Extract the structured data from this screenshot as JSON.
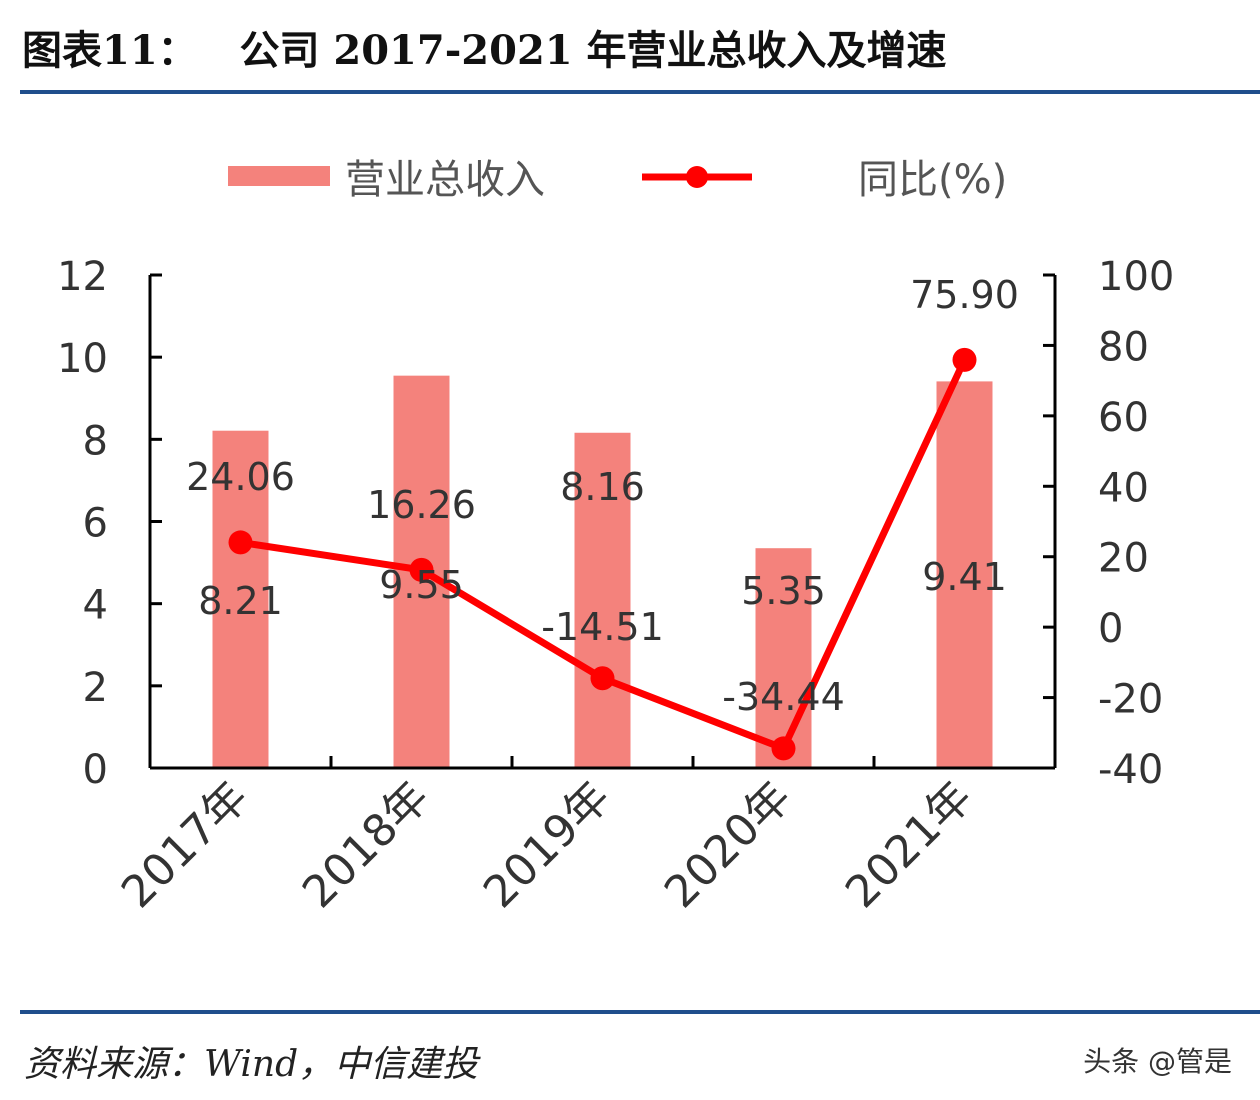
{
  "header": {
    "title": "图表11：   公司 2017-2021 年营业总收入及增速"
  },
  "footer": {
    "source": "资料来源：Wind，中信建投",
    "watermark": "头条 @管是"
  },
  "colors": {
    "bar": "#f4827c",
    "line": "#ff0000",
    "rule": "#1f4e8c"
  },
  "chart_data": {
    "type": "bar+line",
    "categories": [
      "2017年",
      "2018年",
      "2019年",
      "2020年",
      "2021年"
    ],
    "series": [
      {
        "name": "营业总收入",
        "type": "bar",
        "axis": "left",
        "values": [
          8.21,
          9.55,
          8.16,
          5.35,
          9.41
        ],
        "labels": [
          "8.21",
          "9.55",
          "8.16",
          "5.35",
          "9.41"
        ]
      },
      {
        "name": "同比(%)",
        "type": "line",
        "axis": "right",
        "values": [
          24.06,
          16.26,
          -14.51,
          -34.44,
          75.9
        ],
        "labels": [
          "24.06",
          "16.26",
          "-14.51",
          "-34.44",
          "75.90"
        ]
      }
    ],
    "left_axis": {
      "range": [
        0,
        12
      ],
      "ticks": [
        "0",
        "2",
        "4",
        "6",
        "8",
        "10",
        "12"
      ]
    },
    "right_axis": {
      "range": [
        -40,
        100
      ],
      "ticks": [
        "-40",
        "-20",
        "0",
        "20",
        "40",
        "60",
        "80",
        "100"
      ]
    },
    "legend": "top",
    "grid": false
  }
}
